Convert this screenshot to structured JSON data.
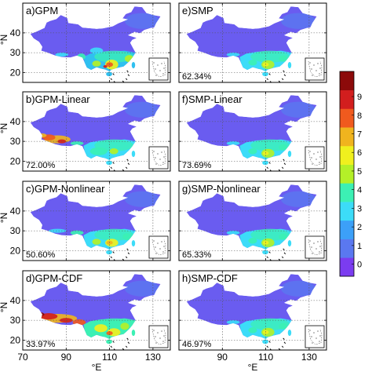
{
  "panels": [
    {
      "label": "a)GPM",
      "percent": "",
      "col": 0,
      "row": 0,
      "type": "gpm"
    },
    {
      "label": "b)GPM-Linear",
      "percent": "72.00%",
      "col": 0,
      "row": 1,
      "type": "hot"
    },
    {
      "label": "c)GPM-Nonlinear",
      "percent": "50.60%",
      "col": 0,
      "row": 2,
      "type": "mid"
    },
    {
      "label": "d)GPM-CDF",
      "percent": "33.97%",
      "col": 0,
      "row": 3,
      "type": "cdf"
    },
    {
      "label": "e)SMP",
      "percent": "62.34%",
      "col": 1,
      "row": 0,
      "type": "smp"
    },
    {
      "label": "f)SMP-Linear",
      "percent": "73.69%",
      "col": 1,
      "row": 1,
      "type": "smp"
    },
    {
      "label": "g)SMP-Nonlinear",
      "percent": "65.33%",
      "col": 1,
      "row": 2,
      "type": "smp"
    },
    {
      "label": "h)SMP-CDF",
      "percent": "46.97%",
      "col": 1,
      "row": 3,
      "type": "smp"
    }
  ],
  "axes": {
    "xlabel": "°E",
    "ylabel": "°N",
    "x_ticks": [
      "70",
      "90",
      "110",
      "130"
    ],
    "y_ticks": [
      "40",
      "30",
      "20"
    ],
    "x_range": [
      70,
      138
    ],
    "y_range": [
      15,
      55
    ]
  },
  "colorbar": {
    "ticks": [
      "0",
      "1",
      "2",
      "3",
      "4",
      "5",
      "6",
      "7",
      "8",
      "9"
    ],
    "colors": [
      "#7b3cf0",
      "#5a78f0",
      "#3ca0f8",
      "#3cdcf8",
      "#3cf0b4",
      "#b4f028",
      "#f0f01e",
      "#f0b41e",
      "#f05a1e",
      "#d21e1e",
      "#8c0a0a"
    ]
  }
}
